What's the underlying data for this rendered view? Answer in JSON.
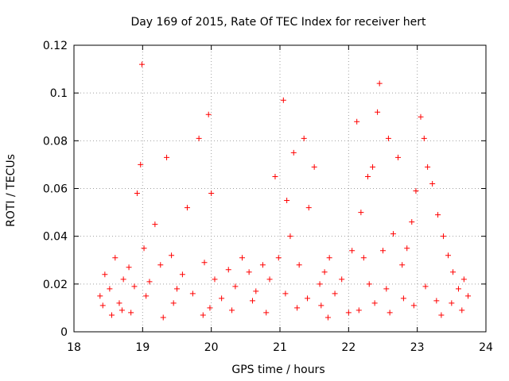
{
  "chart_data": {
    "type": "scatter",
    "title": "Day 169 of 2015, Rate Of TEC Index for receiver hert",
    "xlabel": "GPS time / hours",
    "ylabel": "ROTI / TECUs",
    "xlim": [
      18,
      24
    ],
    "ylim": [
      0,
      0.12
    ],
    "xticks": [
      18,
      19,
      20,
      21,
      22,
      23,
      24
    ],
    "yticks": [
      0,
      0.02,
      0.04,
      0.06,
      0.08,
      0.1,
      0.12
    ],
    "xtick_labels": [
      "18",
      "19",
      "20",
      "21",
      "22",
      "23",
      "24"
    ],
    "ytick_labels": [
      "0",
      "0.02",
      "0.04",
      "0.06",
      "0.08",
      "0.1",
      "0.12"
    ],
    "grid": true,
    "marker": "+",
    "color": "#ff0000",
    "series": [
      {
        "x": [
          18.38,
          18.45,
          18.52,
          18.6,
          18.66,
          18.72,
          18.8,
          18.88,
          18.92,
          18.97,
          18.99,
          19.02,
          19.1,
          19.18,
          19.26,
          19.35,
          19.42,
          19.5,
          19.58,
          19.65,
          19.73,
          19.82,
          19.9,
          19.96,
          20.0,
          20.05,
          20.15,
          20.25,
          20.35,
          20.45,
          20.55,
          20.65,
          20.75,
          20.85,
          20.93,
          20.98,
          21.05,
          21.1,
          21.15,
          21.2,
          21.28,
          21.35,
          21.42,
          21.5,
          21.58,
          21.65,
          21.72,
          21.8,
          21.9,
          22.0,
          22.05,
          22.12,
          22.18,
          22.22,
          22.28,
          22.35,
          22.42,
          22.45,
          22.5,
          22.58,
          22.65,
          22.72,
          22.78,
          22.85,
          22.92,
          22.98,
          23.05,
          23.1,
          23.15,
          23.22,
          23.3,
          23.38,
          23.45,
          23.52,
          23.6,
          23.68,
          23.74,
          18.42,
          18.7,
          19.05,
          19.45,
          19.98,
          20.6,
          21.08,
          21.4,
          21.6,
          22.3,
          22.38,
          22.55,
          22.8,
          23.12,
          23.28,
          23.5,
          18.55,
          18.83,
          19.3,
          19.88,
          20.3,
          20.8,
          21.25,
          21.7,
          22.15,
          22.6,
          22.95,
          23.35,
          23.65
        ],
        "y": [
          0.015,
          0.024,
          0.018,
          0.031,
          0.012,
          0.022,
          0.027,
          0.019,
          0.058,
          0.07,
          0.112,
          0.035,
          0.021,
          0.045,
          0.028,
          0.073,
          0.032,
          0.018,
          0.024,
          0.052,
          0.016,
          0.081,
          0.029,
          0.091,
          0.058,
          0.022,
          0.014,
          0.026,
          0.019,
          0.031,
          0.025,
          0.017,
          0.028,
          0.022,
          0.065,
          0.031,
          0.097,
          0.055,
          0.04,
          0.075,
          0.028,
          0.081,
          0.052,
          0.069,
          0.02,
          0.025,
          0.031,
          0.016,
          0.022,
          0.008,
          0.034,
          0.088,
          0.05,
          0.031,
          0.065,
          0.069,
          0.092,
          0.104,
          0.034,
          0.081,
          0.041,
          0.073,
          0.028,
          0.035,
          0.046,
          0.059,
          0.09,
          0.081,
          0.069,
          0.062,
          0.049,
          0.04,
          0.032,
          0.025,
          0.018,
          0.022,
          0.015,
          0.011,
          0.009,
          0.015,
          0.012,
          0.01,
          0.013,
          0.016,
          0.014,
          0.011,
          0.02,
          0.012,
          0.018,
          0.014,
          0.019,
          0.013,
          0.012,
          0.007,
          0.008,
          0.006,
          0.007,
          0.009,
          0.008,
          0.01,
          0.006,
          0.009,
          0.008,
          0.011,
          0.007,
          0.009
        ]
      }
    ]
  }
}
